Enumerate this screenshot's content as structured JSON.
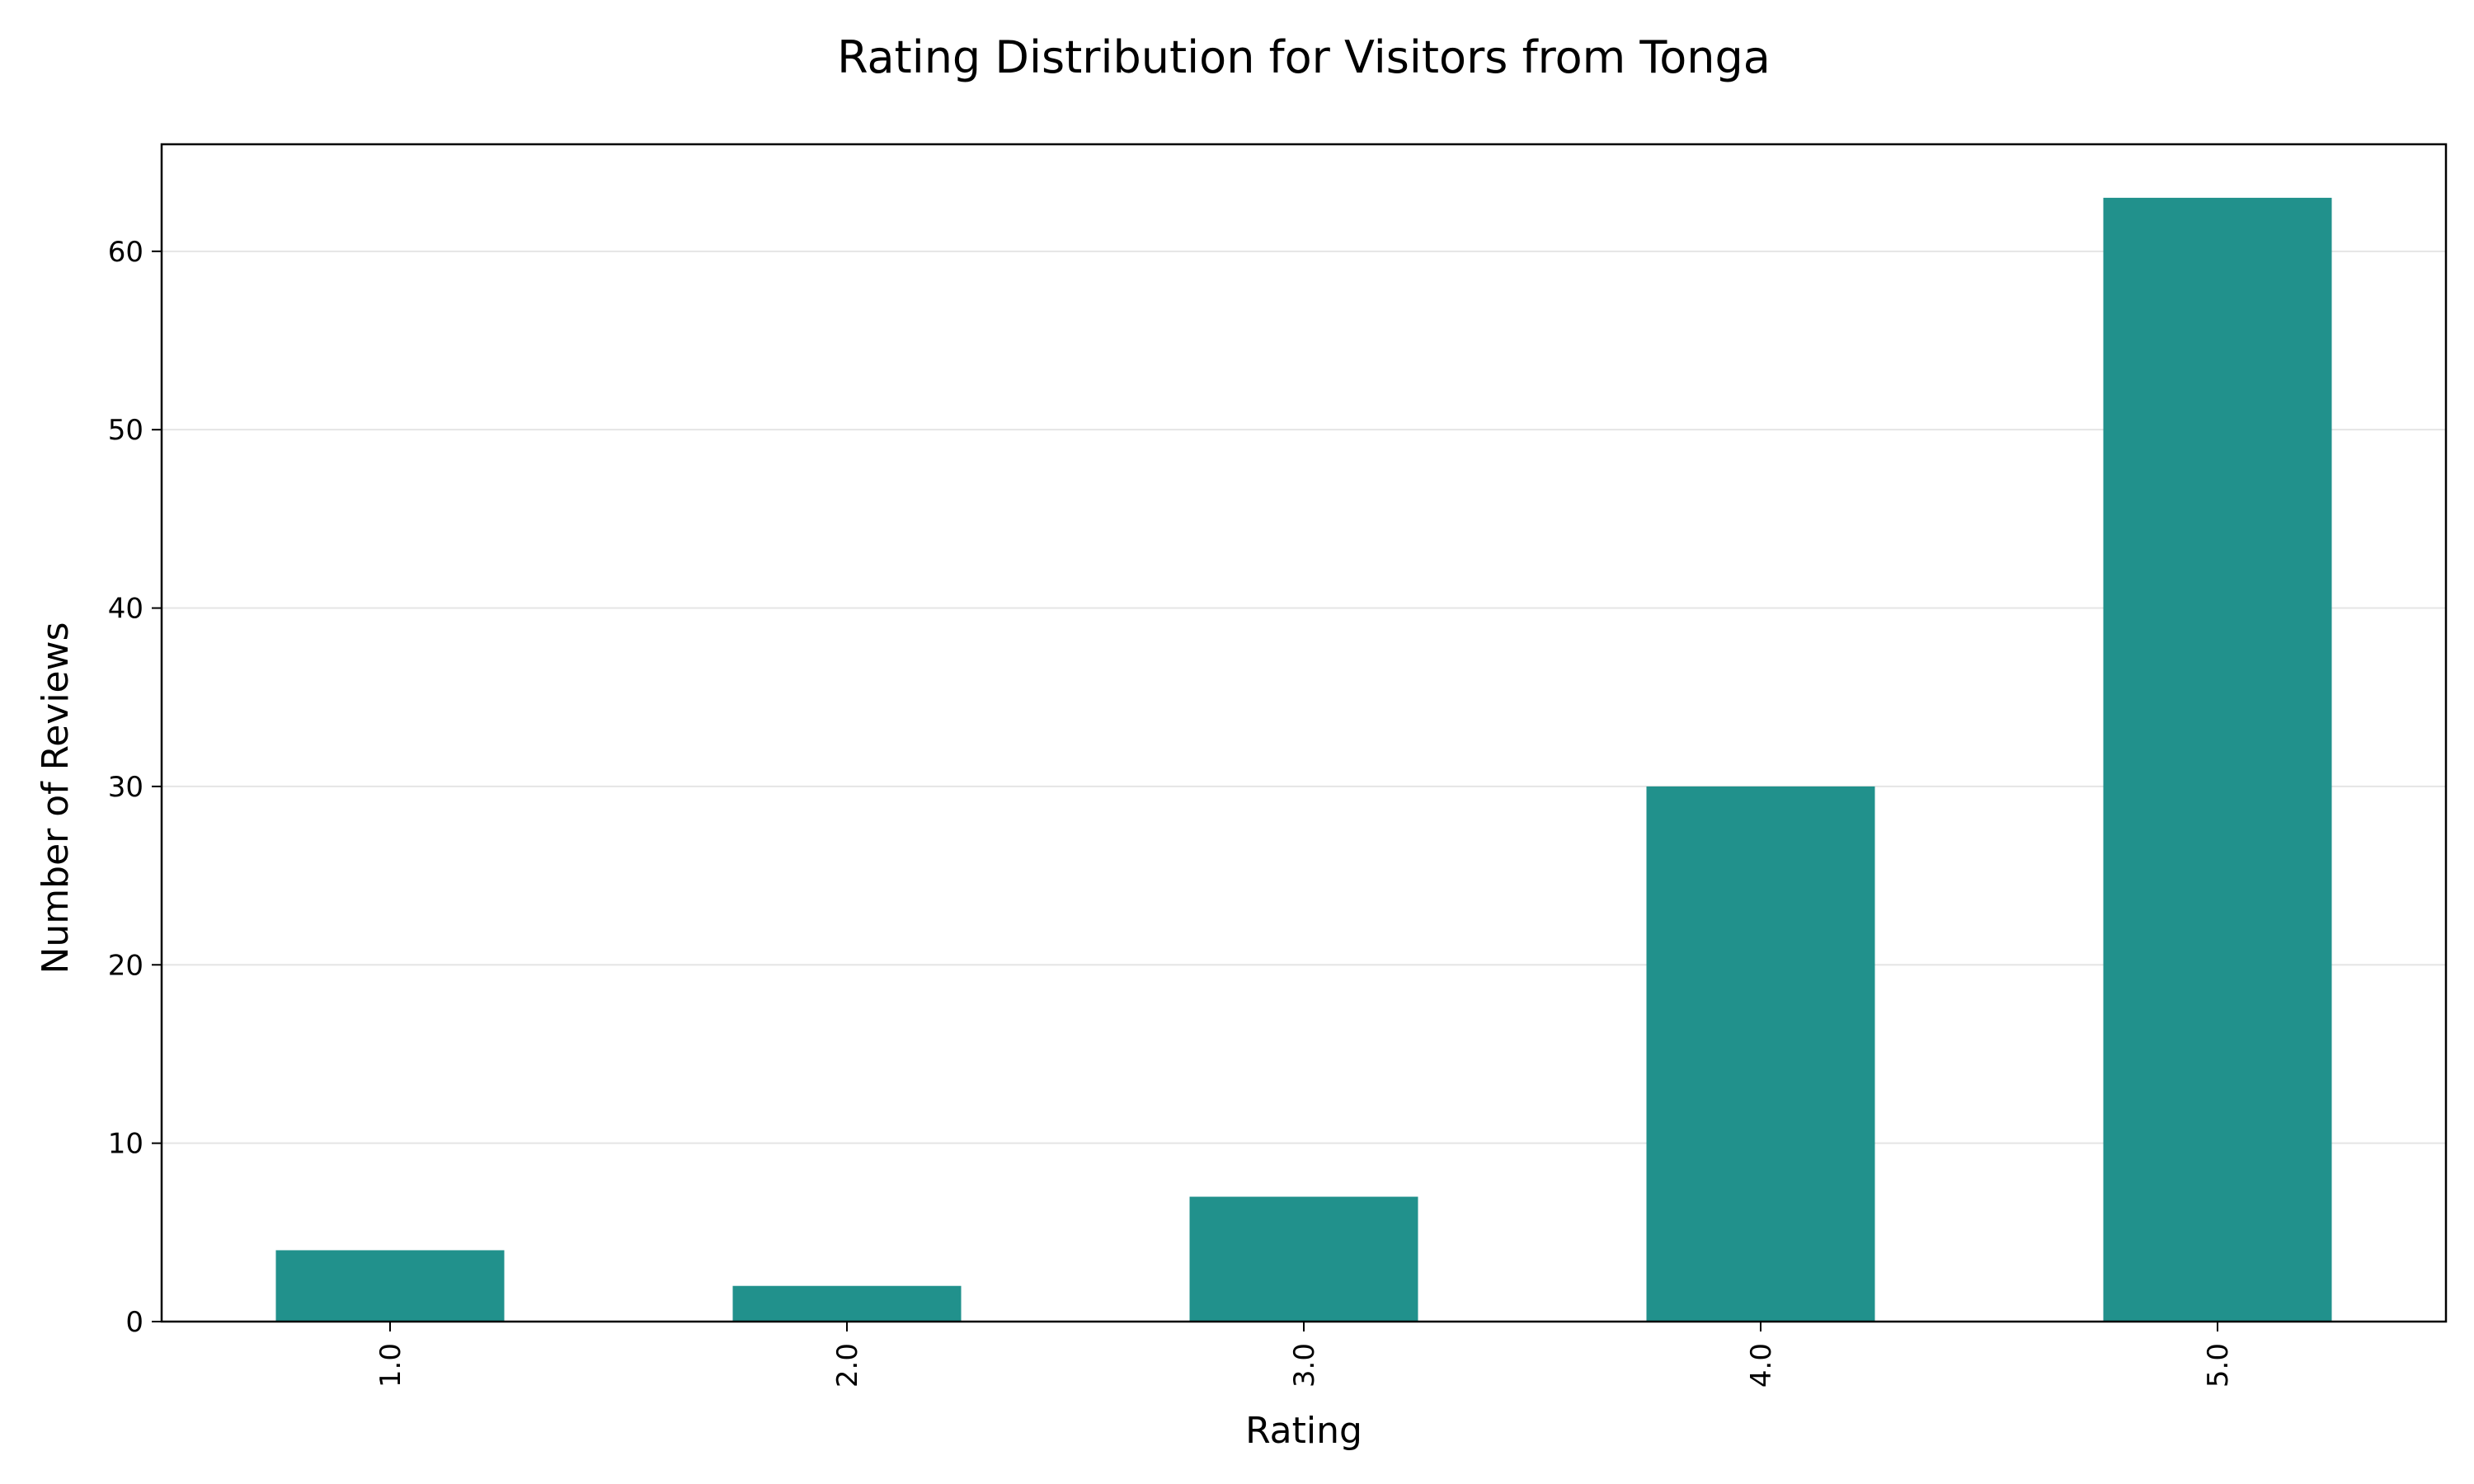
{
  "chart_data": {
    "type": "bar",
    "title": "Rating Distribution for Visitors from Tonga",
    "xlabel": "Rating",
    "ylabel": "Number of Reviews",
    "categories": [
      "1.0",
      "2.0",
      "3.0",
      "4.0",
      "5.0"
    ],
    "values": [
      4,
      2,
      7,
      30,
      63
    ],
    "ylim": [
      0,
      66
    ],
    "yticks": [
      0,
      10,
      20,
      30,
      40,
      50,
      60
    ],
    "yticks_labels": [
      "0",
      "10",
      "20",
      "30",
      "40",
      "50",
      "60"
    ],
    "grid": "y",
    "x_tick_rotation": "vertical",
    "bar_color": "#21918c",
    "grid_color": "#e5e5e5"
  }
}
